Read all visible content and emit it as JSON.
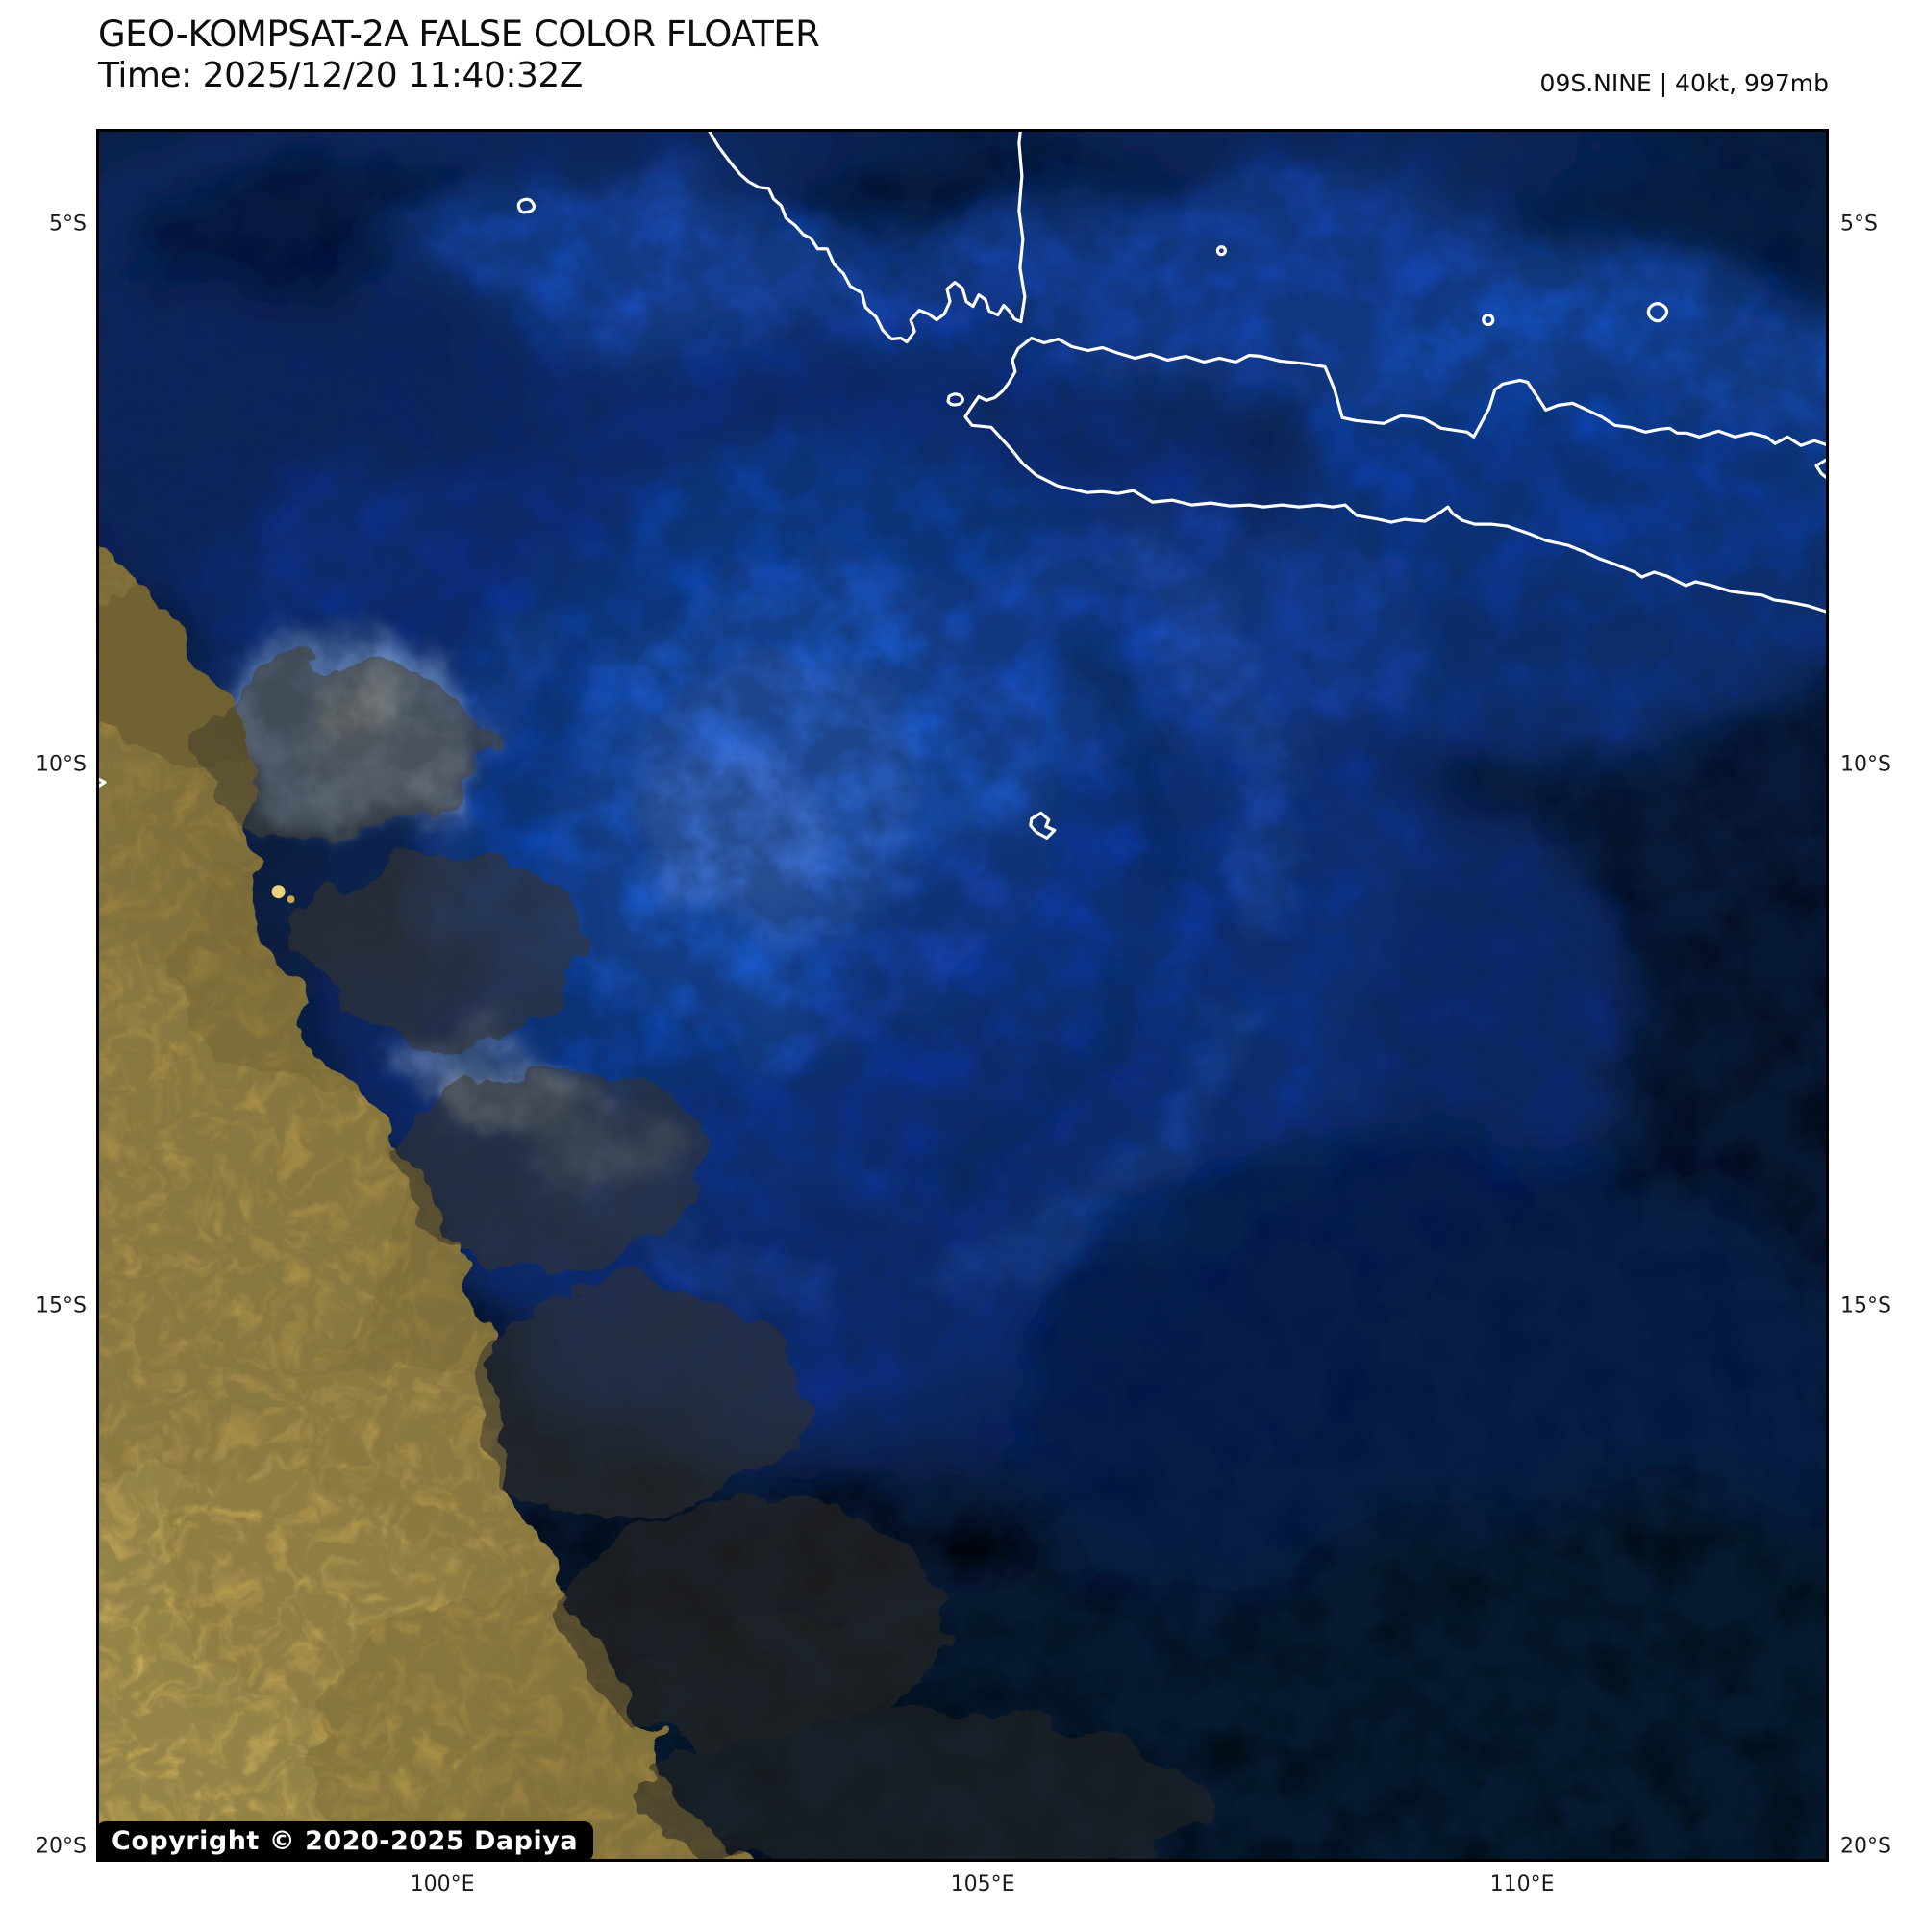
{
  "header": {
    "title": "GEO-KOMPSAT-2A FALSE COLOR FLOATER",
    "time_label": "Time: 2025/12/20 11:40:32Z",
    "storm_info": "09S.NINE | 40kt, 997mb"
  },
  "map": {
    "copyright": "Copyright © 2020-2025 Dapiya",
    "lat_ticks": [
      {
        "label": "5°S",
        "pos_pct": 5.49
      },
      {
        "label": "10°S",
        "pos_pct": 36.7
      },
      {
        "label": "15°S",
        "pos_pct": 67.9
      },
      {
        "label": "20°S",
        "pos_pct": 99.1
      }
    ],
    "lon_ticks": [
      {
        "label": "100°E",
        "pos_pct": 19.98
      },
      {
        "label": "105°E",
        "pos_pct": 51.17
      },
      {
        "label": "110°E",
        "pos_pct": 82.3
      }
    ],
    "features": {
      "satellite": "GEO-KOMPSAT-2A",
      "storm_id": "09S.NINE",
      "intensity_kt": 40,
      "pressure_mb": 997
    },
    "colors": {
      "ocean_dark": "#030a1c",
      "cloud_blue_mid": "#1247b4",
      "cloud_blue_bright": "#3672e4",
      "cloud_pale": "#d9e4f6",
      "sunlit_gold": "#c9ad55",
      "coastline": "#ffffff",
      "frame": "#000000",
      "badge_bg": "#000000",
      "badge_text": "#ffffff"
    }
  }
}
